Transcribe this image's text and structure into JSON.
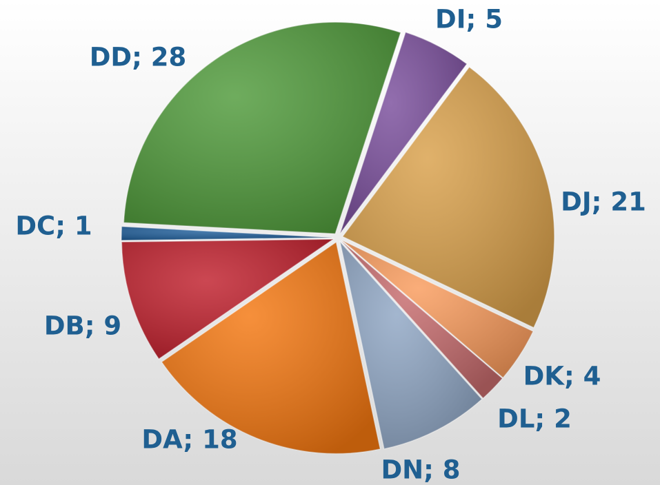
{
  "chart_data": {
    "type": "pie",
    "categories": [
      "DI",
      "DJ",
      "DK",
      "DL",
      "DN",
      "DA",
      "DB",
      "DC",
      "DD"
    ],
    "values": [
      5,
      21,
      4,
      2,
      8,
      18,
      9,
      1,
      28
    ],
    "value_labels": [
      "DI; 5",
      "DJ; 21",
      "DK; 4",
      "DL; 2",
      "DN; 8",
      "DA; 18",
      "DB; 9",
      "DC; 1",
      "DD; 28"
    ],
    "colors": [
      "#7a4e9c",
      "#d9a04a",
      "#f99b5c",
      "#c56a6c",
      "#8fa6c4",
      "#f47710",
      "#c01f2c",
      "#1f5e9a",
      "#4f9a3a"
    ]
  }
}
